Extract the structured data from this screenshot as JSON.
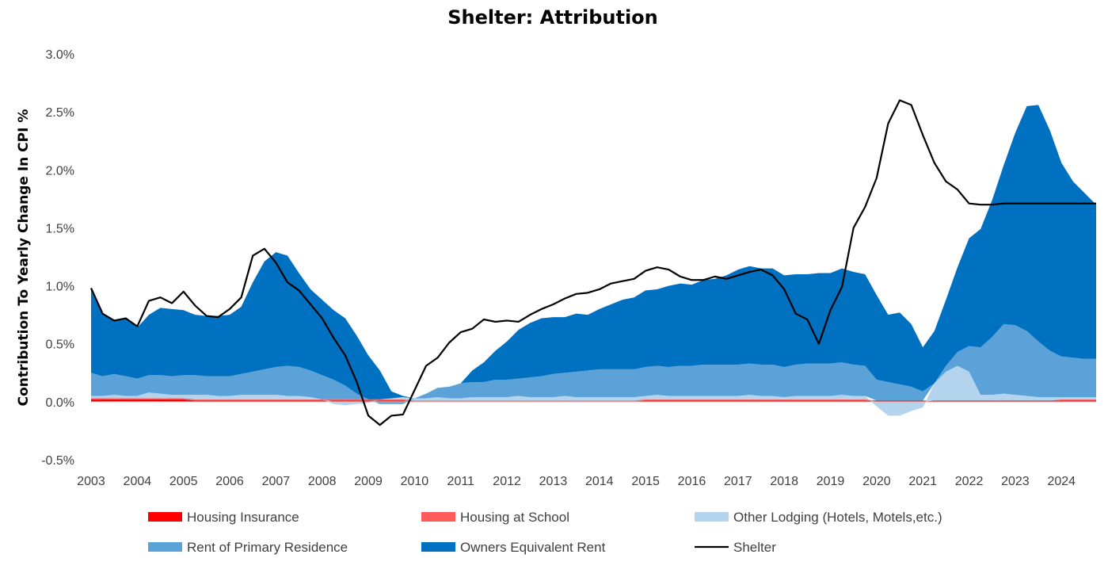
{
  "chart_data": {
    "type": "area",
    "stacked": true,
    "title": "Shelter: Attribution",
    "ylabel": "Contribution To Yearly Change In CPI  %",
    "xlabel": "",
    "x_start": "2003-01",
    "x_end": "2024-11",
    "x_step": "quarterly",
    "ylim": [
      -0.5,
      3.0
    ],
    "yticks": [
      "-0.5%",
      "0.0%",
      "0.5%",
      "1.0%",
      "1.5%",
      "2.0%",
      "2.5%",
      "3.0%"
    ],
    "ytick_values": [
      -0.5,
      0.0,
      0.5,
      1.0,
      1.5,
      2.0,
      2.5,
      3.0
    ],
    "xticks": [
      "2003",
      "2004",
      "2005",
      "2006",
      "2007",
      "2008",
      "2009",
      "2010",
      "2011",
      "2012",
      "2013",
      "2014",
      "2015",
      "2016",
      "2017",
      "2018",
      "2019",
      "2020",
      "2021",
      "2022",
      "2023",
      "2024"
    ],
    "grid": false,
    "legend_position": "bottom",
    "series": [
      {
        "name": "Housing Insurance",
        "color": "#ff0000",
        "kind": "area",
        "values": [
          0.02,
          0.02,
          0.02,
          0.02,
          0.02,
          0.02,
          0.02,
          0.02,
          0.02,
          0.01,
          0.01,
          0.01,
          0.01,
          0.01,
          0.01,
          0.01,
          0.01,
          0.01,
          0.01,
          0.01,
          0.01,
          0.01,
          0.01,
          0.01,
          0.01,
          0.01,
          0.01,
          0.01,
          0.0,
          0.0,
          0.0,
          0.0,
          0.0,
          0.0,
          0.0,
          0.0,
          0.0,
          0.0,
          0.0,
          0.0,
          0.0,
          0.0,
          0.0,
          0.0,
          0.0,
          0.0,
          0.0,
          0.0,
          0.01,
          0.01,
          0.01,
          0.01,
          0.01,
          0.01,
          0.01,
          0.01,
          0.01,
          0.01,
          0.01,
          0.01,
          0.01,
          0.01,
          0.01,
          0.01,
          0.01,
          0.01,
          0.01,
          0.01,
          0.01,
          0.01,
          0.01,
          0.01,
          0.01,
          0.01,
          0.01,
          0.01,
          0.01,
          0.01,
          0.01,
          0.01,
          0.01,
          0.01,
          0.01,
          0.01,
          0.01,
          0.01,
          0.01,
          0.01
        ]
      },
      {
        "name": "Housing at School",
        "color": "#ff5b5b",
        "kind": "area",
        "values": [
          0.01,
          0.01,
          0.01,
          0.01,
          0.01,
          0.01,
          0.01,
          0.01,
          0.01,
          0.01,
          0.01,
          0.01,
          0.01,
          0.01,
          0.01,
          0.01,
          0.01,
          0.01,
          0.01,
          0.01,
          0.01,
          0.01,
          0.01,
          0.01,
          0.01,
          0.01,
          0.01,
          0.01,
          0.01,
          0.01,
          0.01,
          0.01,
          0.01,
          0.01,
          0.01,
          0.01,
          0.01,
          0.01,
          0.01,
          0.01,
          0.01,
          0.01,
          0.01,
          0.01,
          0.01,
          0.01,
          0.01,
          0.01,
          0.01,
          0.01,
          0.01,
          0.01,
          0.01,
          0.01,
          0.01,
          0.01,
          0.01,
          0.01,
          0.01,
          0.01,
          0.01,
          0.01,
          0.01,
          0.01,
          0.01,
          0.01,
          0.01,
          0.01,
          0.0,
          0.0,
          0.0,
          0.0,
          0.0,
          0.0,
          0.0,
          0.0,
          0.0,
          0.0,
          0.0,
          0.0,
          0.0,
          0.0,
          0.0,
          0.0,
          0.01,
          0.01,
          0.01,
          0.01
        ]
      },
      {
        "name": "Other Lodging (Hotels, Motels,etc.)",
        "color": "#b4d4ee",
        "kind": "area",
        "values": [
          0.02,
          0.02,
          0.03,
          0.02,
          0.02,
          0.05,
          0.04,
          0.03,
          0.03,
          0.04,
          0.04,
          0.03,
          0.03,
          0.04,
          0.04,
          0.04,
          0.04,
          0.03,
          0.03,
          0.02,
          0.0,
          -0.02,
          -0.03,
          -0.02,
          -0.01,
          0.0,
          0.01,
          0.02,
          0.02,
          0.02,
          0.03,
          0.02,
          0.02,
          0.03,
          0.03,
          0.03,
          0.03,
          0.04,
          0.03,
          0.03,
          0.03,
          0.04,
          0.03,
          0.03,
          0.03,
          0.03,
          0.03,
          0.03,
          0.03,
          0.04,
          0.03,
          0.03,
          0.03,
          0.03,
          0.03,
          0.03,
          0.03,
          0.04,
          0.03,
          0.03,
          0.02,
          0.03,
          0.03,
          0.03,
          0.03,
          0.04,
          0.03,
          0.03,
          -0.04,
          -0.12,
          -0.12,
          -0.08,
          -0.05,
          0.15,
          0.25,
          0.3,
          0.25,
          0.05,
          0.05,
          0.06,
          0.05,
          0.04,
          0.03,
          0.03,
          0.02,
          0.02,
          0.02,
          0.02
        ]
      },
      {
        "name": "Rent of Primary Residence",
        "color": "#5aa2d8",
        "kind": "area",
        "values": [
          0.2,
          0.17,
          0.18,
          0.17,
          0.15,
          0.15,
          0.16,
          0.16,
          0.17,
          0.17,
          0.16,
          0.17,
          0.17,
          0.18,
          0.2,
          0.22,
          0.24,
          0.26,
          0.25,
          0.23,
          0.21,
          0.17,
          0.12,
          0.05,
          0.0,
          -0.02,
          -0.02,
          -0.02,
          0.0,
          0.04,
          0.08,
          0.1,
          0.13,
          0.13,
          0.13,
          0.15,
          0.15,
          0.15,
          0.17,
          0.18,
          0.2,
          0.2,
          0.22,
          0.23,
          0.24,
          0.24,
          0.24,
          0.24,
          0.25,
          0.25,
          0.25,
          0.26,
          0.26,
          0.27,
          0.27,
          0.27,
          0.27,
          0.27,
          0.27,
          0.27,
          0.26,
          0.27,
          0.28,
          0.28,
          0.28,
          0.28,
          0.27,
          0.26,
          0.18,
          0.16,
          0.14,
          0.12,
          0.08,
          0.0,
          0.05,
          0.12,
          0.22,
          0.41,
          0.5,
          0.6,
          0.6,
          0.56,
          0.48,
          0.4,
          0.35,
          0.34,
          0.33,
          0.33
        ]
      },
      {
        "name": "Owners Equivalent Rent",
        "color": "#0070c0",
        "kind": "area",
        "values": [
          0.73,
          0.54,
          0.46,
          0.5,
          0.44,
          0.52,
          0.58,
          0.58,
          0.56,
          0.52,
          0.52,
          0.52,
          0.53,
          0.58,
          0.77,
          0.93,
          0.99,
          0.95,
          0.81,
          0.7,
          0.65,
          0.6,
          0.58,
          0.5,
          0.38,
          0.25,
          0.06,
          0.01,
          0.0,
          0.0,
          0.0,
          0.0,
          0.0,
          0.1,
          0.17,
          0.25,
          0.33,
          0.42,
          0.47,
          0.5,
          0.49,
          0.48,
          0.5,
          0.48,
          0.52,
          0.56,
          0.6,
          0.62,
          0.66,
          0.66,
          0.7,
          0.71,
          0.7,
          0.73,
          0.74,
          0.77,
          0.82,
          0.84,
          0.83,
          0.83,
          0.79,
          0.78,
          0.77,
          0.78,
          0.78,
          0.81,
          0.8,
          0.79,
          0.73,
          0.58,
          0.62,
          0.54,
          0.38,
          0.45,
          0.57,
          0.73,
          0.93,
          1.02,
          1.18,
          1.37,
          1.66,
          1.94,
          2.04,
          1.9,
          1.67,
          1.52,
          1.43,
          1.33
        ]
      },
      {
        "name": "Shelter",
        "color": "#000000",
        "kind": "line",
        "values": [
          0.98,
          0.76,
          0.7,
          0.72,
          0.65,
          0.87,
          0.9,
          0.85,
          0.95,
          0.83,
          0.74,
          0.73,
          0.8,
          0.9,
          1.26,
          1.32,
          1.2,
          1.03,
          0.96,
          0.84,
          0.72,
          0.55,
          0.4,
          0.17,
          -0.12,
          -0.2,
          -0.12,
          -0.11,
          0.1,
          0.31,
          0.38,
          0.51,
          0.6,
          0.63,
          0.71,
          0.69,
          0.7,
          0.69,
          0.75,
          0.8,
          0.84,
          0.89,
          0.93,
          0.94,
          0.97,
          1.02,
          1.04,
          1.06,
          1.13,
          1.16,
          1.14,
          1.08,
          1.05,
          1.05,
          1.08,
          1.06,
          1.09,
          1.12,
          1.14,
          1.09,
          0.97,
          0.76,
          0.71,
          0.5,
          0.79,
          0.99,
          1.5,
          1.68,
          1.93,
          2.4,
          2.6,
          2.56,
          2.3,
          2.06,
          1.9,
          1.83,
          1.71,
          1.7,
          1.7,
          1.71,
          1.71,
          1.71,
          1.71,
          1.71,
          1.71,
          1.71,
          1.71,
          1.71
        ]
      }
    ]
  },
  "legend": [
    {
      "label": "Housing Insurance",
      "color": "#ff0000",
      "kind": "area"
    },
    {
      "label": "Housing at School",
      "color": "#ff5b5b",
      "kind": "area"
    },
    {
      "label": "Other Lodging (Hotels, Motels,etc.)",
      "color": "#b4d4ee",
      "kind": "area"
    },
    {
      "label": "Rent of Primary Residence",
      "color": "#5aa2d8",
      "kind": "area"
    },
    {
      "label": "Owners Equivalent Rent",
      "color": "#0070c0",
      "kind": "area"
    },
    {
      "label": "Shelter",
      "color": "#000000",
      "kind": "line"
    }
  ]
}
